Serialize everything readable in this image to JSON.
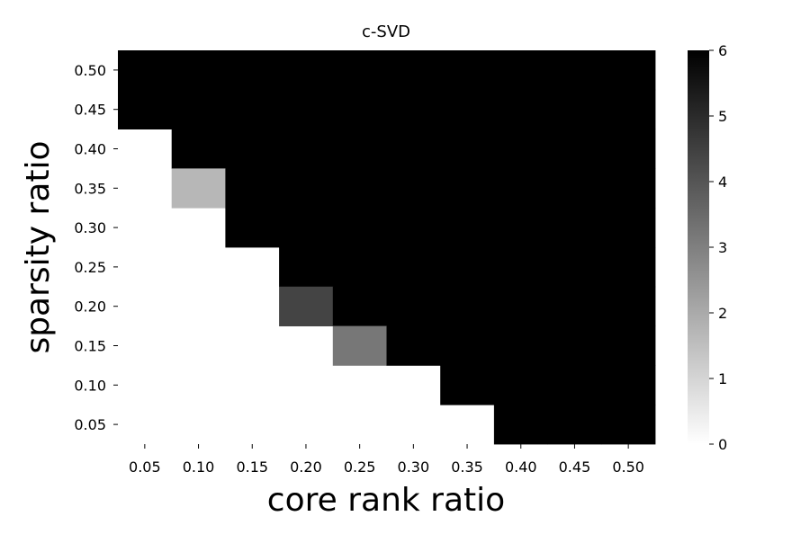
{
  "chart_data": {
    "type": "heatmap",
    "title": "c-SVD",
    "xlabel": "core rank ratio",
    "ylabel": "sparsity ratio",
    "x_categories": [
      "0.05",
      "0.10",
      "0.15",
      "0.20",
      "0.25",
      "0.30",
      "0.35",
      "0.40",
      "0.45",
      "0.50"
    ],
    "y_categories": [
      "0.50",
      "0.45",
      "0.40",
      "0.35",
      "0.30",
      "0.25",
      "0.20",
      "0.15",
      "0.10",
      "0.05"
    ],
    "values": [
      [
        6,
        6,
        6,
        6,
        6,
        6,
        6,
        6,
        6,
        6
      ],
      [
        6,
        6,
        6,
        6,
        6,
        6,
        6,
        6,
        6,
        6
      ],
      [
        null,
        6,
        6,
        6,
        6,
        6,
        6,
        6,
        6,
        6
      ],
      [
        null,
        1.7,
        6,
        6,
        6,
        6,
        6,
        6,
        6,
        6
      ],
      [
        null,
        null,
        6,
        6,
        6,
        6,
        6,
        6,
        6,
        6
      ],
      [
        null,
        null,
        null,
        6,
        6,
        6,
        6,
        6,
        6,
        6
      ],
      [
        null,
        null,
        null,
        4.4,
        6,
        6,
        6,
        6,
        6,
        6
      ],
      [
        null,
        null,
        null,
        null,
        3.2,
        6,
        6,
        6,
        6,
        6
      ],
      [
        null,
        null,
        null,
        null,
        null,
        null,
        6,
        6,
        6,
        6
      ],
      [
        null,
        null,
        null,
        null,
        null,
        null,
        null,
        6,
        6,
        6
      ]
    ],
    "colorbar": {
      "min": 0,
      "max": 6,
      "ticks": [
        "0",
        "1",
        "2",
        "3",
        "4",
        "5",
        "6"
      ],
      "colormap": "white-to-black"
    },
    "grid": false
  }
}
